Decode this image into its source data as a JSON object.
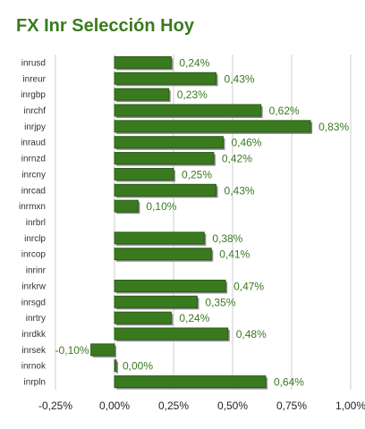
{
  "title": "FX Inr Selección Hoy",
  "chart_data": {
    "type": "bar",
    "orientation": "horizontal",
    "title": "FX Inr Selección Hoy",
    "categories": [
      "inrusd",
      "inreur",
      "inrgbp",
      "inrchf",
      "inrjpy",
      "inraud",
      "inrnzd",
      "inrcny",
      "inrcad",
      "inrmxn",
      "inrbrl",
      "inrclp",
      "inrcop",
      "inrinr",
      "inrkrw",
      "inrsgd",
      "inrtry",
      "inrdkk",
      "inrsek",
      "inrnok",
      "inrpln"
    ],
    "values": [
      0.24,
      0.43,
      0.23,
      0.62,
      0.83,
      0.46,
      0.42,
      0.25,
      0.43,
      0.1,
      null,
      0.38,
      0.41,
      null,
      0.47,
      0.35,
      0.24,
      0.48,
      -0.1,
      0.0,
      0.64
    ],
    "value_labels": [
      "0,24%",
      "0,43%",
      "0,23%",
      "0,62%",
      "0,83%",
      "0,46%",
      "0,42%",
      "0,25%",
      "0,43%",
      "0,10%",
      "",
      "0,38%",
      "0,41%",
      "",
      "0,47%",
      "0,35%",
      "0,24%",
      "0,48%",
      "-0,10%",
      "0,00%",
      "0,64%"
    ],
    "xlim": [
      -0.25,
      1.0
    ],
    "xticks": [
      -0.25,
      0,
      0.25,
      0.5,
      0.75,
      1.0
    ],
    "xtick_labels": [
      "-0,25%",
      "0,00%",
      "0,25%",
      "0,50%",
      "0,75%",
      "1,00%"
    ],
    "grid": true,
    "colors": {
      "bar": "#3a7a1f",
      "bar_dark": "#2a5c16",
      "shadow": "#8a8a8a",
      "grid": "#cccccc",
      "label": "#3a7a1f"
    }
  }
}
